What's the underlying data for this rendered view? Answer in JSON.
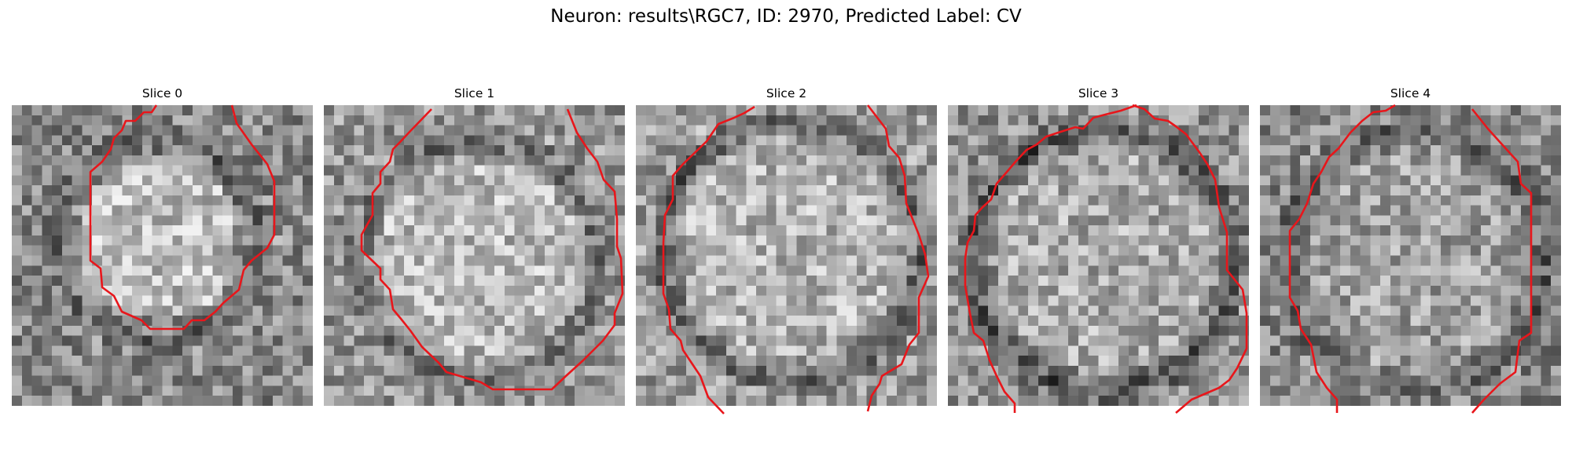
{
  "figure": {
    "title": "Neuron: results\\RGC7, ID: 2970, Predicted Label: CV"
  },
  "slices": [
    {
      "title": "Slice 0"
    },
    {
      "title": "Slice 1"
    },
    {
      "title": "Slice 2"
    },
    {
      "title": "Slice 3"
    },
    {
      "title": "Slice 4"
    }
  ],
  "colors": {
    "contour": "#e8161b",
    "background": "#ffffff"
  }
}
